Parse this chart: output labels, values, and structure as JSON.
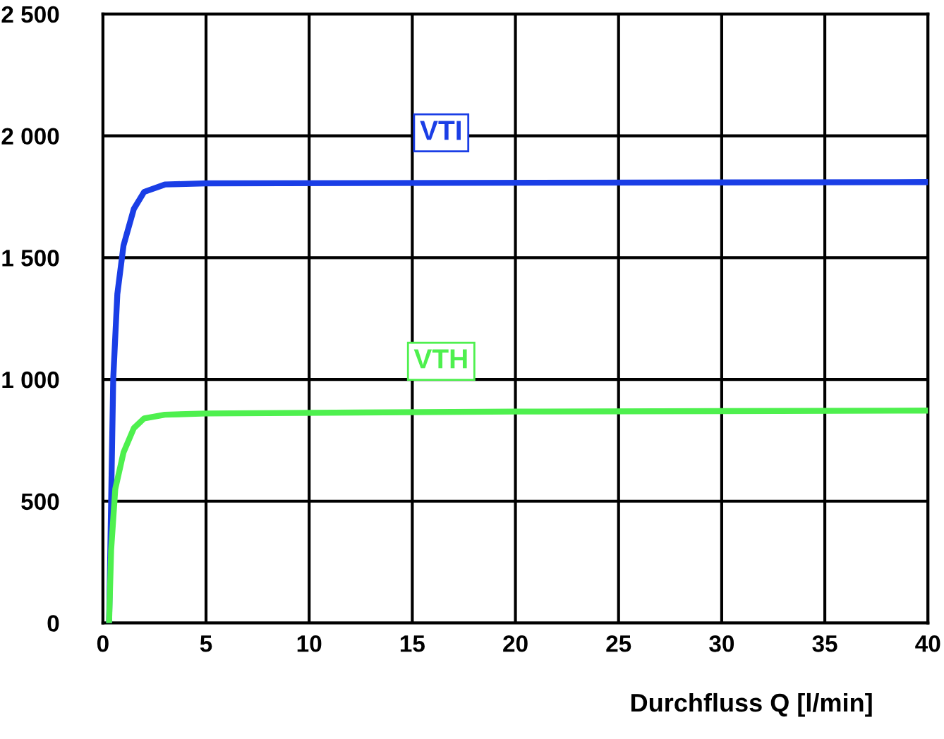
{
  "chart_data": {
    "type": "line",
    "xlabel": "Durchfluss Q [l/min]",
    "series": [
      {
        "name": "VTI",
        "color": "#1a3ee6",
        "x": [
          0.3,
          0.4,
          0.5,
          0.7,
          1,
          1.5,
          2,
          3,
          5,
          40
        ],
        "values": [
          0,
          500,
          1000,
          1350,
          1550,
          1700,
          1770,
          1800,
          1805,
          1810
        ]
      },
      {
        "name": "VTH",
        "color": "#4ef04e",
        "x": [
          0.3,
          0.4,
          0.6,
          1,
          1.5,
          2,
          3,
          5,
          20,
          40
        ],
        "values": [
          0,
          300,
          550,
          700,
          800,
          840,
          855,
          860,
          868,
          872
        ]
      }
    ],
    "xlim": [
      0,
      40
    ],
    "xticks": [
      0,
      5,
      10,
      15,
      20,
      25,
      30,
      35,
      40
    ],
    "ylim": [
      0,
      2500
    ],
    "yticks": [
      0,
      500,
      {
        "value": 1000,
        "label": "1 000"
      },
      {
        "value": 1500,
        "label": "1 500"
      },
      {
        "value": 2000,
        "label": "2 000"
      },
      {
        "value": 2500,
        "label": "2 500"
      }
    ],
    "grid": true,
    "legend": false,
    "marker": "none",
    "line_style": "solid"
  }
}
